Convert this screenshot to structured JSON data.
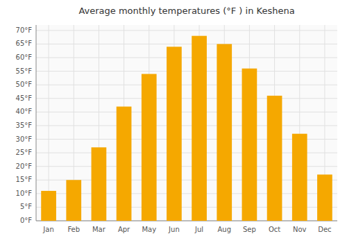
{
  "chart_data": {
    "type": "bar",
    "title": "Average monthly temperatures (°F ) in Keshena",
    "categories": [
      "Jan",
      "Feb",
      "Mar",
      "Apr",
      "May",
      "Jun",
      "Jul",
      "Aug",
      "Sep",
      "Oct",
      "Nov",
      "Dec"
    ],
    "values": [
      11,
      15,
      27,
      42,
      54,
      64,
      68,
      65,
      56,
      46,
      32,
      17
    ],
    "color": "#F5A800",
    "ylim": [
      0,
      72
    ],
    "yticks": [
      {
        "value": 0,
        "label": "0°F"
      },
      {
        "value": 5,
        "label": "5°F"
      },
      {
        "value": 10,
        "label": "10°F"
      },
      {
        "value": 15,
        "label": "15°F"
      },
      {
        "value": 20,
        "label": "20°F"
      },
      {
        "value": 25,
        "label": "25°F"
      },
      {
        "value": 30,
        "label": "30°F"
      },
      {
        "value": 35,
        "label": "35°F"
      },
      {
        "value": 40,
        "label": "40°F"
      },
      {
        "value": 45,
        "label": "45°F"
      },
      {
        "value": 50,
        "label": "50°F"
      },
      {
        "value": 55,
        "label": "55°F"
      },
      {
        "value": 60,
        "label": "60°F"
      },
      {
        "value": 65,
        "label": "65°F"
      },
      {
        "value": 70,
        "label": "70°F"
      }
    ],
    "grid": true
  }
}
